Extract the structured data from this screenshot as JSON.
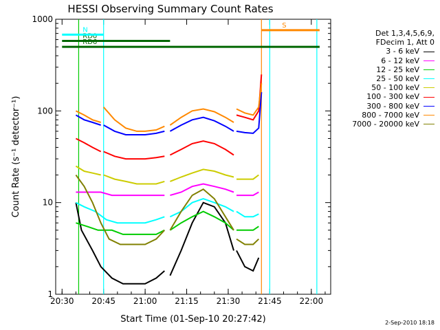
{
  "chart_data": {
    "type": "line",
    "title": "HESSI Observing Summary Count Rates",
    "xlabel": "Start Time (01-Sep-10 20:27:42)",
    "ylabel": "Count Rate (s⁻¹ detector⁻¹)",
    "y_scale": "log",
    "ylim": [
      1,
      1000
    ],
    "x_ticks": [
      "20:30",
      "20:45",
      "21:00",
      "21:15",
      "21:30",
      "21:45",
      "22:00"
    ],
    "y_ticks": [
      "1",
      "10",
      "100",
      "1000"
    ],
    "grid": false,
    "legend_position": "right",
    "legend_header": [
      "Det 1,3,4,5,6,9,",
      "FDecim 1, Att 0"
    ],
    "series": [
      {
        "name": "3 - 6 keV",
        "color": "#000000",
        "segments": [
          {
            "x": [
              "20:35",
              "20:37",
              "20:41",
              "20:44",
              "20:48",
              "20:52",
              "20:56",
              "21:00",
              "21:04",
              "21:07"
            ],
            "y": [
              10,
              5,
              3,
              2,
              1.5,
              1.3,
              1.3,
              1.3,
              1.5,
              1.8
            ]
          },
          {
            "x": [
              "21:09",
              "21:13",
              "21:17",
              "21:21",
              "21:25",
              "21:29",
              "21:32"
            ],
            "y": [
              1.6,
              3,
              6,
              10,
              9,
              6,
              3
            ]
          },
          {
            "x": [
              "21:33",
              "21:36",
              "21:39",
              "21:41"
            ],
            "y": [
              3,
              2,
              1.8,
              2.5
            ]
          }
        ]
      },
      {
        "name": "6 - 12 keV",
        "color": "#ff00ff",
        "segments": [
          {
            "x": [
              "20:35",
              "20:40",
              "20:44",
              "20:48",
              "20:52",
              "20:56",
              "21:00",
              "21:04",
              "21:07"
            ],
            "y": [
              13,
              13,
              13,
              12,
              12,
              12,
              12,
              12,
              12
            ]
          },
          {
            "x": [
              "21:09",
              "21:13",
              "21:17",
              "21:21",
              "21:25",
              "21:29",
              "21:32"
            ],
            "y": [
              12,
              13,
              15,
              16,
              15,
              14,
              13
            ]
          },
          {
            "x": [
              "21:33",
              "21:36",
              "21:39",
              "21:41"
            ],
            "y": [
              12,
              12,
              12,
              13
            ]
          }
        ]
      },
      {
        "name": "12 - 25 keV",
        "color": "#00cc00",
        "segments": [
          {
            "x": [
              "20:35",
              "20:39",
              "20:43",
              "20:48",
              "20:52",
              "20:56",
              "21:00",
              "21:04",
              "21:07"
            ],
            "y": [
              6,
              5.5,
              5,
              5,
              4.5,
              4.5,
              4.5,
              4.5,
              5
            ]
          },
          {
            "x": [
              "21:09",
              "21:13",
              "21:17",
              "21:21",
              "21:25",
              "21:29",
              "21:32"
            ],
            "y": [
              5,
              6,
              7,
              8,
              7,
              6,
              5
            ]
          },
          {
            "x": [
              "21:33",
              "21:36",
              "21:39",
              "21:41"
            ],
            "y": [
              5,
              5,
              5,
              5.5
            ]
          }
        ]
      },
      {
        "name": "25 - 50 keV",
        "color": "#00ffff",
        "segments": [
          {
            "x": [
              "20:35",
              "20:38",
              "20:42",
              "20:46",
              "20:50",
              "20:55",
              "21:00",
              "21:04",
              "21:07"
            ],
            "y": [
              10,
              9,
              8,
              6.5,
              6,
              6,
              6,
              6.5,
              7
            ]
          },
          {
            "x": [
              "21:09",
              "21:13",
              "21:17",
              "21:21",
              "21:25",
              "21:29",
              "21:32"
            ],
            "y": [
              7,
              8,
              10,
              11,
              10,
              9,
              8
            ]
          },
          {
            "x": [
              "21:33",
              "21:36",
              "21:39",
              "21:41"
            ],
            "y": [
              8,
              7,
              7,
              7.5
            ]
          }
        ]
      },
      {
        "name": "50 - 100 keV",
        "color": "#cccc00",
        "segments": [
          {
            "x": [
              "20:35",
              "20:38",
              "20:41",
              "20:44"
            ],
            "y": [
              25,
              22,
              21,
              20
            ]
          },
          {
            "x": [
              "20:45",
              "20:49",
              "20:53",
              "20:57",
              "21:00",
              "21:04",
              "21:07"
            ],
            "y": [
              20,
              18,
              17,
              16,
              16,
              16,
              17
            ]
          },
          {
            "x": [
              "21:09",
              "21:13",
              "21:17",
              "21:21",
              "21:25",
              "21:29",
              "21:32"
            ],
            "y": [
              17,
              19,
              21,
              23,
              22,
              20,
              19
            ]
          },
          {
            "x": [
              "21:33",
              "21:36",
              "21:39",
              "21:41"
            ],
            "y": [
              18,
              18,
              18,
              20
            ]
          }
        ]
      },
      {
        "name": "100 - 300 keV",
        "color": "#ff0000",
        "segments": [
          {
            "x": [
              "20:35",
              "20:38",
              "20:41",
              "20:44"
            ],
            "y": [
              50,
              45,
              40,
              36
            ]
          },
          {
            "x": [
              "20:45",
              "20:49",
              "20:53",
              "20:57",
              "21:00",
              "21:04",
              "21:07"
            ],
            "y": [
              36,
              32,
              30,
              30,
              30,
              31,
              32
            ]
          },
          {
            "x": [
              "21:09",
              "21:13",
              "21:17",
              "21:21",
              "21:25",
              "21:29",
              "21:32"
            ],
            "y": [
              33,
              38,
              44,
              47,
              44,
              38,
              33
            ]
          },
          {
            "x": [
              "21:33",
              "21:36",
              "21:39",
              "21:41",
              "21:42"
            ],
            "y": [
              90,
              85,
              80,
              100,
              250
            ]
          }
        ]
      },
      {
        "name": "300 - 800 keV",
        "color": "#0000ff",
        "segments": [
          {
            "x": [
              "20:35",
              "20:38",
              "20:41",
              "20:44"
            ],
            "y": [
              90,
              80,
              75,
              70
            ]
          },
          {
            "x": [
              "20:45",
              "20:49",
              "20:53",
              "20:57",
              "21:00",
              "21:04",
              "21:07"
            ],
            "y": [
              70,
              60,
              55,
              55,
              55,
              57,
              60
            ]
          },
          {
            "x": [
              "21:09",
              "21:13",
              "21:17",
              "21:21",
              "21:25",
              "21:29",
              "21:32"
            ],
            "y": [
              60,
              70,
              80,
              85,
              78,
              68,
              60
            ]
          },
          {
            "x": [
              "21:33",
              "21:36",
              "21:39",
              "21:41",
              "21:42"
            ],
            "y": [
              60,
              58,
              57,
              65,
              160
            ]
          }
        ]
      },
      {
        "name": "800 - 7000 keV",
        "color": "#ff8800",
        "segments": [
          {
            "x": [
              "20:35",
              "20:38",
              "20:41",
              "20:44"
            ],
            "y": [
              100,
              90,
              80,
              75
            ]
          },
          {
            "x": [
              "20:45",
              "20:49",
              "20:53",
              "20:57",
              "21:00",
              "21:04",
              "21:07"
            ],
            "y": [
              110,
              80,
              65,
              60,
              60,
              62,
              68
            ]
          },
          {
            "x": [
              "21:09",
              "21:13",
              "21:17",
              "21:21",
              "21:25",
              "21:29",
              "21:32"
            ],
            "y": [
              70,
              85,
              100,
              105,
              98,
              85,
              75
            ]
          },
          {
            "x": [
              "21:33",
              "21:36",
              "21:39",
              "21:41",
              "21:42"
            ],
            "y": [
              105,
              95,
              90,
              110,
              200
            ]
          }
        ]
      },
      {
        "name": "7000 - 20000 keV",
        "color": "#808000",
        "segments": [
          {
            "x": [
              "20:35",
              "20:38",
              "20:41",
              "20:44",
              "20:47",
              "20:51",
              "20:55",
              "21:00",
              "21:04",
              "21:07"
            ],
            "y": [
              20,
              15,
              10,
              6,
              4,
              3.5,
              3.5,
              3.5,
              4,
              5
            ]
          },
          {
            "x": [
              "21:09",
              "21:13",
              "21:17",
              "21:21",
              "21:25",
              "21:29",
              "21:32"
            ],
            "y": [
              5,
              8,
              12,
              14,
              11,
              7,
              5
            ]
          },
          {
            "x": [
              "21:33",
              "21:36",
              "21:39",
              "21:41"
            ],
            "y": [
              4,
              3.5,
              3.5,
              4
            ]
          }
        ]
      }
    ],
    "annotations": [
      {
        "label": "RD0",
        "color": "#006600",
        "x_start": "20:30",
        "x_end": "21:09",
        "y": 580
      },
      {
        "label": "RD6",
        "color": "#006600",
        "x_start": "20:30",
        "x_end": "22:03",
        "y": 500
      },
      {
        "label": "N",
        "color": "#00ffff",
        "x_start": "20:30",
        "x_end": "20:45",
        "y": 680
      },
      {
        "label": "S",
        "color": "#ff8800",
        "x_start": "21:42",
        "x_end": "22:03",
        "y": 760
      }
    ],
    "vertical_markers": [
      {
        "x": "20:36",
        "color": "#00cc00"
      },
      {
        "x": "20:45",
        "color": "#00ffff"
      },
      {
        "x": "21:42",
        "color": "#ff8800"
      },
      {
        "x": "21:45",
        "color": "#00ffff"
      },
      {
        "x": "22:02",
        "color": "#00ffff"
      }
    ],
    "footer": "2-Sep-2010 18:18"
  }
}
